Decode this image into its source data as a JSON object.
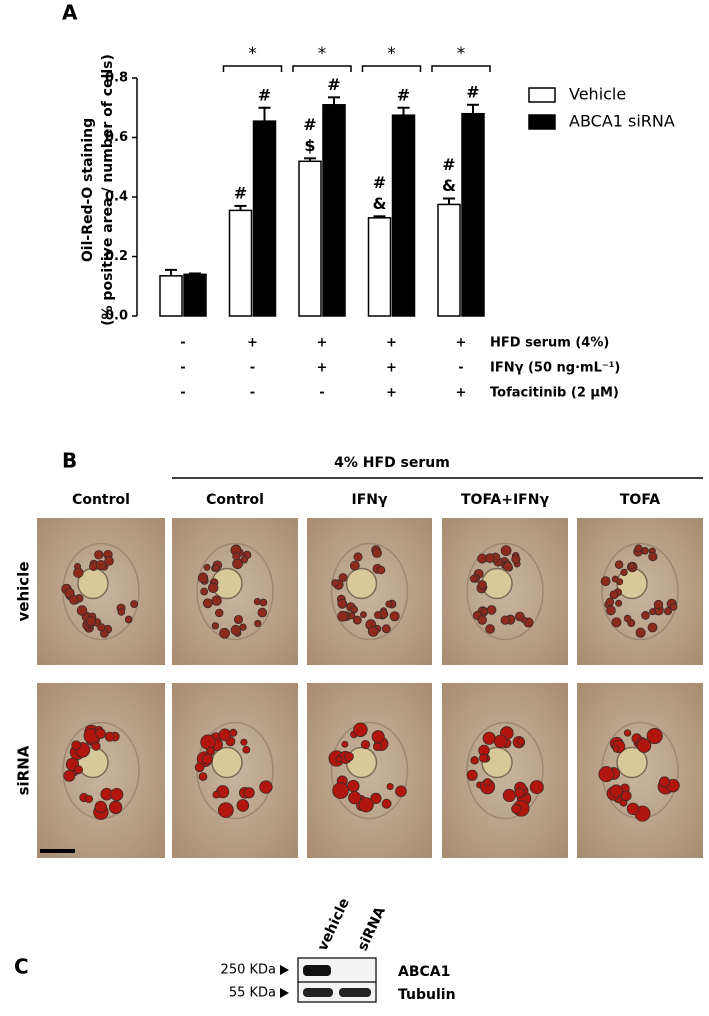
{
  "panel_labels": [
    "A",
    "B",
    "C"
  ],
  "chart_data": {
    "type": "bar",
    "y_label_lines": [
      "Oil-Red-O staining",
      "(% positive area / number of cells)"
    ],
    "categories": [
      null,
      null,
      null,
      null,
      null
    ],
    "series": [
      {
        "name": "Vehicle",
        "color": "#ffffff",
        "values": [
          0.135,
          0.355,
          0.52,
          0.33,
          0.375
        ],
        "errors": [
          0.02,
          0.015,
          0.01,
          0.005,
          0.02
        ],
        "annotations": [
          [],
          [
            "#"
          ],
          [
            "#",
            "$"
          ],
          [
            "#",
            "&"
          ],
          [
            "#",
            "&"
          ]
        ]
      },
      {
        "name": "ABCA1 siRNA",
        "color": "#000000",
        "values": [
          0.14,
          0.655,
          0.71,
          0.675,
          0.68
        ],
        "errors": [
          0.003,
          0.045,
          0.025,
          0.025,
          0.03
        ],
        "annotations": [
          [],
          [
            "#"
          ],
          [
            "#"
          ],
          [
            "#"
          ],
          [
            "#"
          ]
        ]
      }
    ],
    "significance": [
      null,
      "*",
      "*",
      "*",
      "*"
    ],
    "ylim": [
      0,
      0.8
    ],
    "yticks": [
      {
        "value": 0,
        "label": "0.0"
      },
      {
        "value": 0.2,
        "label": "0.2"
      },
      {
        "value": 0.4,
        "label": "0.4"
      },
      {
        "value": 0.6,
        "label": "0.6"
      },
      {
        "value": 0.8,
        "label": "0.8"
      }
    ],
    "legend": "right",
    "conditions": [
      {
        "label": "HFD serum (4%)",
        "values": [
          "-",
          "+",
          "+",
          "+",
          "+"
        ]
      },
      {
        "label": "IFNγ (50 ng·mL⁻¹)",
        "values": [
          "-",
          "-",
          "+",
          "+",
          "-"
        ]
      },
      {
        "label": "Tofacitinib (2 μM)",
        "values": [
          "-",
          "-",
          "-",
          "+",
          "+"
        ]
      }
    ]
  },
  "panel_b": {
    "group_header": "4% HFD serum",
    "columns": [
      "Control",
      "Control",
      "IFNγ",
      "TOFA+IFNγ",
      "TOFA"
    ],
    "rows": [
      "vehicle",
      "siRNA"
    ]
  },
  "panel_c": {
    "lanes": [
      "vehicle",
      "siRNA"
    ],
    "markers": [
      "250 KDa",
      "55 KDa"
    ],
    "proteins": [
      "ABCA1",
      "Tubulin"
    ]
  }
}
